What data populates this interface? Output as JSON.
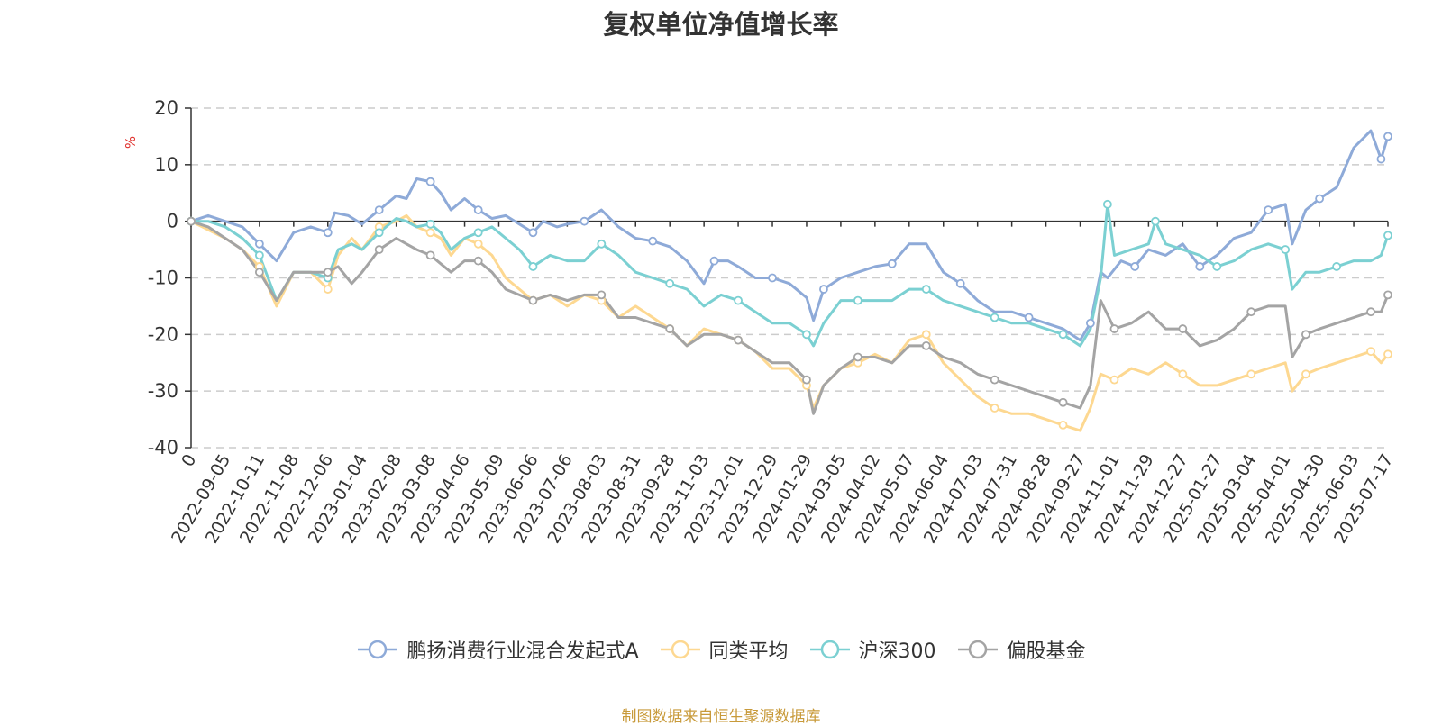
{
  "chart_data": {
    "type": "line",
    "title": "复权单位净值增长率",
    "ylabel": "%",
    "ylim": [
      -40,
      20
    ],
    "yticks": [
      20,
      10,
      0,
      -10,
      -20,
      -30,
      -40
    ],
    "grid": true,
    "legend_position": "bottom",
    "x_ticks": [
      "0",
      "2022-09-05",
      "2022-10-11",
      "2022-11-08",
      "2022-12-06",
      "2023-01-04",
      "2023-02-08",
      "2023-03-08",
      "2023-04-06",
      "2023-05-09",
      "2023-06-06",
      "2023-07-06",
      "2023-08-03",
      "2023-08-31",
      "2023-09-28",
      "2023-11-03",
      "2023-12-01",
      "2023-12-29",
      "2024-01-29",
      "2024-03-05",
      "2024-04-02",
      "2024-05-07",
      "2024-06-04",
      "2024-07-03",
      "2024-07-31",
      "2024-08-28",
      "2024-09-27",
      "2024-11-01",
      "2024-11-29",
      "2024-12-27",
      "2025-01-27",
      "2025-03-04",
      "2025-04-01",
      "2025-04-30",
      "2025-06-03",
      "2025-07-17"
    ],
    "x_range": [
      0,
      35
    ],
    "series": [
      {
        "name": "鹏扬消费行业混合发起式A",
        "color": "#8eaad8",
        "points": [
          [
            0,
            0
          ],
          [
            0.5,
            1
          ],
          [
            1,
            0
          ],
          [
            1.5,
            -1
          ],
          [
            2,
            -4
          ],
          [
            2.5,
            -7
          ],
          [
            3,
            -2
          ],
          [
            3.5,
            -1
          ],
          [
            4,
            -2
          ],
          [
            4.2,
            1.5
          ],
          [
            4.6,
            1
          ],
          [
            5,
            -0.5
          ],
          [
            5.5,
            2
          ],
          [
            6,
            4.5
          ],
          [
            6.3,
            4
          ],
          [
            6.6,
            7.5
          ],
          [
            7,
            7
          ],
          [
            7.3,
            5
          ],
          [
            7.6,
            2
          ],
          [
            8,
            4
          ],
          [
            8.4,
            2
          ],
          [
            8.8,
            0.5
          ],
          [
            9.2,
            1
          ],
          [
            9.6,
            -0.5
          ],
          [
            10,
            -2
          ],
          [
            10.3,
            0
          ],
          [
            10.7,
            -1
          ],
          [
            11,
            -0.5
          ],
          [
            11.5,
            0
          ],
          [
            12,
            2
          ],
          [
            12.5,
            -1
          ],
          [
            13,
            -3
          ],
          [
            13.5,
            -3.5
          ],
          [
            14,
            -4.5
          ],
          [
            14.5,
            -7
          ],
          [
            15,
            -11
          ],
          [
            15.3,
            -7
          ],
          [
            15.7,
            -7
          ],
          [
            16,
            -8
          ],
          [
            16.5,
            -10
          ],
          [
            17,
            -10
          ],
          [
            17.5,
            -11
          ],
          [
            18,
            -13.5
          ],
          [
            18.2,
            -17.5
          ],
          [
            18.5,
            -12
          ],
          [
            19,
            -10
          ],
          [
            19.5,
            -9
          ],
          [
            20,
            -8
          ],
          [
            20.5,
            -7.5
          ],
          [
            21,
            -4
          ],
          [
            21.5,
            -4
          ],
          [
            22,
            -9
          ],
          [
            22.5,
            -11
          ],
          [
            23,
            -14
          ],
          [
            23.5,
            -16
          ],
          [
            24,
            -16
          ],
          [
            24.5,
            -17
          ],
          [
            25,
            -18
          ],
          [
            25.5,
            -19
          ],
          [
            26,
            -21
          ],
          [
            26.3,
            -18
          ],
          [
            26.6,
            -9
          ],
          [
            26.8,
            -10
          ],
          [
            27.2,
            -7
          ],
          [
            27.6,
            -8
          ],
          [
            28,
            -5
          ],
          [
            28.5,
            -6
          ],
          [
            29,
            -4
          ],
          [
            29.5,
            -8
          ],
          [
            30,
            -6
          ],
          [
            30.5,
            -3
          ],
          [
            31,
            -2
          ],
          [
            31.5,
            2
          ],
          [
            32,
            3
          ],
          [
            32.2,
            -4
          ],
          [
            32.6,
            2
          ],
          [
            33,
            4
          ],
          [
            33.5,
            6
          ],
          [
            34,
            13
          ],
          [
            34.5,
            16
          ],
          [
            34.8,
            11
          ],
          [
            35,
            15
          ]
        ]
      },
      {
        "name": "同类平均",
        "color": "#fdd891",
        "points": [
          [
            0,
            0
          ],
          [
            0.5,
            -1.5
          ],
          [
            1,
            -3
          ],
          [
            1.5,
            -5
          ],
          [
            2,
            -8
          ],
          [
            2.5,
            -15
          ],
          [
            3,
            -9
          ],
          [
            3.5,
            -9
          ],
          [
            4,
            -12
          ],
          [
            4.3,
            -6
          ],
          [
            4.7,
            -3
          ],
          [
            5,
            -5
          ],
          [
            5.5,
            -1
          ],
          [
            6,
            0
          ],
          [
            6.3,
            1
          ],
          [
            6.6,
            -1
          ],
          [
            7,
            -2
          ],
          [
            7.3,
            -3
          ],
          [
            7.6,
            -6
          ],
          [
            8,
            -3
          ],
          [
            8.4,
            -4
          ],
          [
            8.8,
            -6
          ],
          [
            9.2,
            -10
          ],
          [
            9.6,
            -12
          ],
          [
            10,
            -14
          ],
          [
            10.5,
            -13
          ],
          [
            11,
            -15
          ],
          [
            11.5,
            -13
          ],
          [
            12,
            -14
          ],
          [
            12.5,
            -17
          ],
          [
            13,
            -15
          ],
          [
            13.5,
            -17
          ],
          [
            14,
            -19
          ],
          [
            14.5,
            -22
          ],
          [
            15,
            -19
          ],
          [
            15.5,
            -20
          ],
          [
            16,
            -21
          ],
          [
            16.5,
            -23
          ],
          [
            17,
            -26
          ],
          [
            17.5,
            -26
          ],
          [
            18,
            -29
          ],
          [
            18.2,
            -33
          ],
          [
            18.5,
            -29
          ],
          [
            19,
            -26
          ],
          [
            19.5,
            -25
          ],
          [
            20,
            -23.5
          ],
          [
            20.5,
            -25
          ],
          [
            21,
            -21
          ],
          [
            21.5,
            -20
          ],
          [
            22,
            -25
          ],
          [
            22.5,
            -28
          ],
          [
            23,
            -31
          ],
          [
            23.5,
            -33
          ],
          [
            24,
            -34
          ],
          [
            24.5,
            -34
          ],
          [
            25,
            -35
          ],
          [
            25.5,
            -36
          ],
          [
            26,
            -37
          ],
          [
            26.3,
            -33
          ],
          [
            26.6,
            -27
          ],
          [
            27,
            -28
          ],
          [
            27.5,
            -26
          ],
          [
            28,
            -27
          ],
          [
            28.5,
            -25
          ],
          [
            29,
            -27
          ],
          [
            29.5,
            -29
          ],
          [
            30,
            -29
          ],
          [
            30.5,
            -28
          ],
          [
            31,
            -27
          ],
          [
            31.5,
            -26
          ],
          [
            32,
            -25
          ],
          [
            32.2,
            -30
          ],
          [
            32.6,
            -27
          ],
          [
            33,
            -26
          ],
          [
            33.5,
            -25
          ],
          [
            34,
            -24
          ],
          [
            34.5,
            -23
          ],
          [
            34.8,
            -25
          ],
          [
            35,
            -23.5
          ]
        ]
      },
      {
        "name": "沪深300",
        "color": "#7bd0d2",
        "points": [
          [
            0,
            0
          ],
          [
            0.5,
            0
          ],
          [
            1,
            -1
          ],
          [
            1.5,
            -3
          ],
          [
            2,
            -6
          ],
          [
            2.5,
            -14
          ],
          [
            3,
            -9
          ],
          [
            3.5,
            -9
          ],
          [
            4,
            -10
          ],
          [
            4.3,
            -5
          ],
          [
            4.7,
            -4
          ],
          [
            5,
            -5
          ],
          [
            5.5,
            -2
          ],
          [
            6,
            0.5
          ],
          [
            6.3,
            0
          ],
          [
            6.6,
            -1
          ],
          [
            7,
            -0.5
          ],
          [
            7.3,
            -2
          ],
          [
            7.6,
            -5
          ],
          [
            8,
            -3
          ],
          [
            8.4,
            -2
          ],
          [
            8.8,
            -1
          ],
          [
            9.2,
            -3
          ],
          [
            9.6,
            -5
          ],
          [
            10,
            -8
          ],
          [
            10.5,
            -6
          ],
          [
            11,
            -7
          ],
          [
            11.5,
            -7
          ],
          [
            12,
            -4
          ],
          [
            12.5,
            -6
          ],
          [
            13,
            -9
          ],
          [
            13.5,
            -10
          ],
          [
            14,
            -11
          ],
          [
            14.5,
            -12
          ],
          [
            15,
            -15
          ],
          [
            15.5,
            -13
          ],
          [
            16,
            -14
          ],
          [
            16.5,
            -16
          ],
          [
            17,
            -18
          ],
          [
            17.5,
            -18
          ],
          [
            18,
            -20
          ],
          [
            18.2,
            -22
          ],
          [
            18.5,
            -18
          ],
          [
            19,
            -14
          ],
          [
            19.5,
            -14
          ],
          [
            20,
            -14
          ],
          [
            20.5,
            -14
          ],
          [
            21,
            -12
          ],
          [
            21.5,
            -12
          ],
          [
            22,
            -14
          ],
          [
            22.5,
            -15
          ],
          [
            23,
            -16
          ],
          [
            23.5,
            -17
          ],
          [
            24,
            -18
          ],
          [
            24.5,
            -18
          ],
          [
            25,
            -19
          ],
          [
            25.5,
            -20
          ],
          [
            26,
            -22
          ],
          [
            26.3,
            -19
          ],
          [
            26.6,
            -10
          ],
          [
            26.8,
            3
          ],
          [
            27,
            -6
          ],
          [
            27.5,
            -5
          ],
          [
            28,
            -4
          ],
          [
            28.2,
            0
          ],
          [
            28.5,
            -4
          ],
          [
            29,
            -5
          ],
          [
            29.5,
            -6
          ],
          [
            30,
            -8
          ],
          [
            30.5,
            -7
          ],
          [
            31,
            -5
          ],
          [
            31.5,
            -4
          ],
          [
            32,
            -5
          ],
          [
            32.2,
            -12
          ],
          [
            32.6,
            -9
          ],
          [
            33,
            -9
          ],
          [
            33.5,
            -8
          ],
          [
            34,
            -7
          ],
          [
            34.5,
            -7
          ],
          [
            34.8,
            -6
          ],
          [
            35,
            -2.5
          ]
        ]
      },
      {
        "name": "偏股基金",
        "color": "#a4a4a4",
        "points": [
          [
            0,
            0
          ],
          [
            0.5,
            -1
          ],
          [
            1,
            -3
          ],
          [
            1.5,
            -5
          ],
          [
            2,
            -9
          ],
          [
            2.5,
            -14
          ],
          [
            3,
            -9
          ],
          [
            3.5,
            -9
          ],
          [
            4,
            -9
          ],
          [
            4.3,
            -8
          ],
          [
            4.7,
            -11
          ],
          [
            5,
            -9
          ],
          [
            5.5,
            -5
          ],
          [
            6,
            -3
          ],
          [
            6.3,
            -4
          ],
          [
            6.6,
            -5
          ],
          [
            7,
            -6
          ],
          [
            7.3,
            -7.5
          ],
          [
            7.6,
            -9
          ],
          [
            8,
            -7
          ],
          [
            8.4,
            -7
          ],
          [
            8.8,
            -9
          ],
          [
            9.2,
            -12
          ],
          [
            9.6,
            -13
          ],
          [
            10,
            -14
          ],
          [
            10.5,
            -13
          ],
          [
            11,
            -14
          ],
          [
            11.5,
            -13
          ],
          [
            12,
            -13
          ],
          [
            12.5,
            -17
          ],
          [
            13,
            -17
          ],
          [
            13.5,
            -18
          ],
          [
            14,
            -19
          ],
          [
            14.5,
            -22
          ],
          [
            15,
            -20
          ],
          [
            15.5,
            -20
          ],
          [
            16,
            -21
          ],
          [
            16.5,
            -23
          ],
          [
            17,
            -25
          ],
          [
            17.5,
            -25
          ],
          [
            18,
            -28
          ],
          [
            18.2,
            -34
          ],
          [
            18.5,
            -29
          ],
          [
            19,
            -26
          ],
          [
            19.5,
            -24
          ],
          [
            20,
            -24
          ],
          [
            20.5,
            -25
          ],
          [
            21,
            -22
          ],
          [
            21.5,
            -22
          ],
          [
            22,
            -24
          ],
          [
            22.5,
            -25
          ],
          [
            23,
            -27
          ],
          [
            23.5,
            -28
          ],
          [
            24,
            -29
          ],
          [
            24.5,
            -30
          ],
          [
            25,
            -31
          ],
          [
            25.5,
            -32
          ],
          [
            26,
            -33
          ],
          [
            26.3,
            -29
          ],
          [
            26.6,
            -14
          ],
          [
            27,
            -19
          ],
          [
            27.5,
            -18
          ],
          [
            28,
            -16
          ],
          [
            28.5,
            -19
          ],
          [
            29,
            -19
          ],
          [
            29.5,
            -22
          ],
          [
            30,
            -21
          ],
          [
            30.5,
            -19
          ],
          [
            31,
            -16
          ],
          [
            31.5,
            -15
          ],
          [
            32,
            -15
          ],
          [
            32.2,
            -24
          ],
          [
            32.6,
            -20
          ],
          [
            33,
            -19
          ],
          [
            33.5,
            -18
          ],
          [
            34,
            -17
          ],
          [
            34.5,
            -16
          ],
          [
            34.8,
            -16
          ],
          [
            35,
            -13
          ]
        ]
      }
    ],
    "source_note": "制图数据来自恒生聚源数据库"
  }
}
